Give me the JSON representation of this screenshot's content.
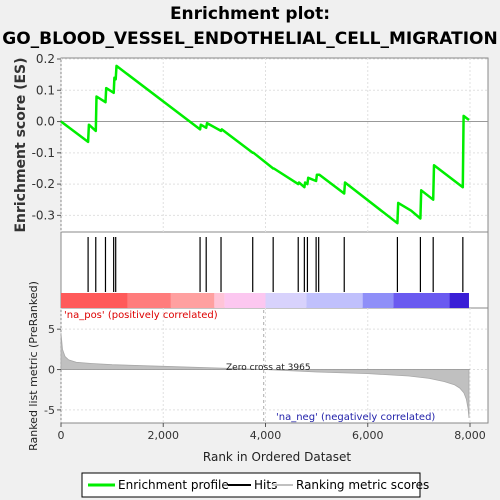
{
  "title": "Enrichment plot:",
  "subtitle": "GO_BLOOD_VESSEL_ENDOTHELIAL_CELL_MIGRATION",
  "colors": {
    "background": "#f0f0f0",
    "profile": "#00ee00",
    "zero_line": "#999999",
    "grid": "#e0e0e0",
    "metric_fill": "#c0c0c0"
  },
  "chart_data": [
    {
      "type": "line",
      "panel": "enrichment",
      "ylabel": "Enrichment score (ES)",
      "xlim": [
        0,
        8000
      ],
      "ylim": [
        -0.35,
        0.2
      ],
      "yticks": [
        0.2,
        0.1,
        0.0,
        -0.1,
        -0.2,
        -0.3
      ],
      "ytick_labels": [
        "0.2",
        "0.1",
        "0.0",
        "-0.1",
        "-0.2",
        "-0.3"
      ],
      "grid": true,
      "series": [
        {
          "name": "Enrichment profile",
          "x": [
            0,
            530,
            545,
            680,
            695,
            870,
            885,
            1030,
            1045,
            1070,
            1085,
            2720,
            2735,
            2840,
            2855,
            3130,
            3145,
            3750,
            3765,
            4150,
            4165,
            4640,
            4655,
            4760,
            4775,
            4820,
            4835,
            4990,
            5005,
            5040,
            5055,
            5540,
            5555,
            6580,
            6595,
            6850,
            7030,
            7045,
            7280,
            7295,
            7860,
            7875,
            7980
          ],
          "y": [
            0.0,
            -0.065,
            -0.01,
            -0.03,
            0.08,
            0.062,
            0.107,
            0.092,
            0.14,
            0.135,
            0.178,
            -0.025,
            -0.01,
            -0.02,
            -0.005,
            -0.03,
            -0.025,
            -0.1,
            -0.1,
            -0.15,
            -0.15,
            -0.2,
            -0.195,
            -0.21,
            -0.195,
            -0.2,
            -0.18,
            -0.19,
            -0.17,
            -0.17,
            -0.17,
            -0.23,
            -0.195,
            -0.325,
            -0.26,
            -0.285,
            -0.31,
            -0.22,
            -0.25,
            -0.14,
            -0.21,
            0.018,
            0.005
          ]
        }
      ]
    },
    {
      "type": "hits",
      "panel": "hits",
      "hit_ranks": [
        530,
        680,
        870,
        1030,
        1070,
        2720,
        2840,
        3130,
        3750,
        4150,
        4640,
        4760,
        4820,
        4990,
        5040,
        5540,
        6580,
        7030,
        7280,
        7860
      ],
      "color_bar": [
        {
          "to": 1300,
          "color": "#ff5a5a"
        },
        {
          "to": 2150,
          "color": "#ff7c7c"
        },
        {
          "to": 3000,
          "color": "#ffa0a0"
        },
        {
          "to": 3200,
          "color": "#ffc4d8"
        },
        {
          "to": 4000,
          "color": "#fcc7f0"
        },
        {
          "to": 4800,
          "color": "#d8d2fc"
        },
        {
          "to": 5900,
          "color": "#c0c0fc"
        },
        {
          "to": 6500,
          "color": "#8f8ff8"
        },
        {
          "to": 7600,
          "color": "#6a5af0"
        },
        {
          "to": 7980,
          "color": "#3a1fd6"
        }
      ]
    },
    {
      "type": "area",
      "panel": "metric",
      "ylabel": "Ranked list metric (PreRanked)",
      "xlabel": "Rank in Ordered Dataset",
      "xlim": [
        0,
        8000
      ],
      "ylim": [
        -6.5,
        7.5
      ],
      "xticks": [
        0,
        2000,
        4000,
        6000,
        8000
      ],
      "xtick_labels": [
        "0",
        "2,000",
        "4,000",
        "6,000",
        "8,000"
      ],
      "yticks": [
        5,
        0,
        -5
      ],
      "ytick_labels": [
        "5",
        "0",
        "-5"
      ],
      "x": [
        0,
        30,
        80,
        150,
        300,
        600,
        1000,
        2000,
        3000,
        3965,
        5000,
        6000,
        6800,
        7200,
        7500,
        7700,
        7800,
        7880,
        7930,
        7960,
        7980
      ],
      "values": [
        4.5,
        2.5,
        1.6,
        1.2,
        0.9,
        0.75,
        0.6,
        0.4,
        0.2,
        0.0,
        -0.3,
        -0.5,
        -0.8,
        -1.1,
        -1.5,
        -1.9,
        -2.3,
        -2.9,
        -3.7,
        -4.8,
        -6.0
      ],
      "zero_cross_rank": 3965,
      "zero_cross_label": "Zero cross at 3965",
      "pos_label": "'na_pos' (positively correlated)",
      "neg_label": "'na_neg' (negatively correlated)"
    }
  ],
  "legend": {
    "placement": "bottom",
    "items": [
      {
        "label": "Enrichment profile",
        "color": "#00ee00"
      },
      {
        "label": "Hits",
        "color": "#000000"
      },
      {
        "label": "Ranking metric scores",
        "color": "#c0c0c0"
      }
    ]
  }
}
